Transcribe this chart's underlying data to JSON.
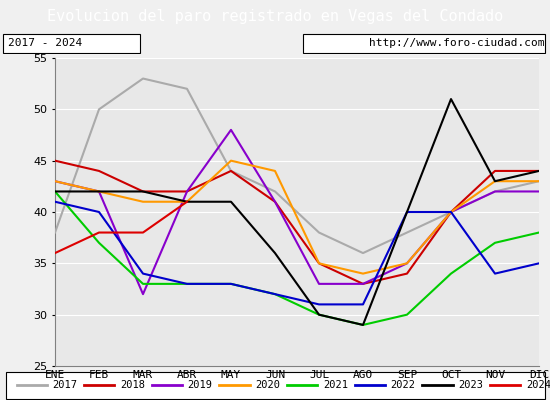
{
  "title": "Evolucion del paro registrado en Vegas del Condado",
  "subtitle_left": "2017 - 2024",
  "subtitle_right": "http://www.foro-ciudad.com",
  "title_bg_color": "#4472c4",
  "title_text_color": "#ffffff",
  "months": [
    "ENE",
    "FEB",
    "MAR",
    "ABR",
    "MAY",
    "JUN",
    "JUL",
    "AGO",
    "SEP",
    "OCT",
    "NOV",
    "DIC"
  ],
  "ylim": [
    25,
    55
  ],
  "yticks": [
    25,
    30,
    35,
    40,
    45,
    50,
    55
  ],
  "series": {
    "2017": {
      "color": "#aaaaaa",
      "data": [
        38,
        50,
        53,
        52,
        44,
        42,
        38,
        36,
        38,
        40,
        42,
        43
      ]
    },
    "2018": {
      "color": "#cc0000",
      "data": [
        45,
        44,
        42,
        42,
        44,
        41,
        35,
        33,
        34,
        40,
        44,
        44
      ]
    },
    "2019": {
      "color": "#8800cc",
      "data": [
        43,
        42,
        32,
        42,
        48,
        41,
        33,
        33,
        35,
        40,
        42,
        42
      ]
    },
    "2020": {
      "color": "#ff9900",
      "data": [
        43,
        42,
        41,
        41,
        45,
        44,
        35,
        34,
        35,
        40,
        43,
        43
      ]
    },
    "2021": {
      "color": "#00cc00",
      "data": [
        42,
        37,
        33,
        33,
        33,
        32,
        30,
        29,
        30,
        34,
        37,
        38
      ]
    },
    "2022": {
      "color": "#0000cc",
      "data": [
        41,
        40,
        34,
        33,
        33,
        32,
        31,
        31,
        40,
        40,
        34,
        35
      ]
    },
    "2023": {
      "color": "#000000",
      "data": [
        42,
        42,
        42,
        41,
        41,
        36,
        30,
        29,
        40,
        51,
        43,
        44
      ]
    },
    "2024": {
      "color": "#dd0000",
      "data": [
        36,
        38,
        38,
        41,
        null,
        null,
        null,
        null,
        null,
        null,
        null,
        null
      ]
    }
  },
  "bg_color": "#f0f0f0",
  "plot_bg_color": "#e8e8e8",
  "grid_color": "#ffffff"
}
